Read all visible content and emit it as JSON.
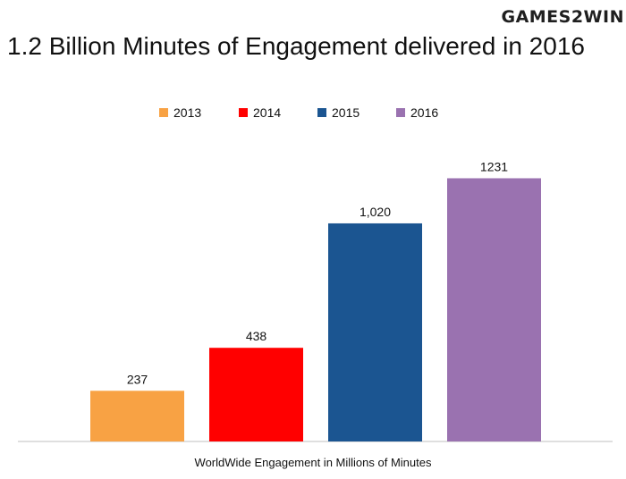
{
  "brand": {
    "logo_text": "GAMES2WIN"
  },
  "chart_data": {
    "type": "bar",
    "title": "1.2 Billion Minutes of Engagement delivered in 2016",
    "xlabel": "WorldWide Engagement in Millions of Minutes",
    "ylabel": "",
    "categories": [
      "2013",
      "2014",
      "2015",
      "2016"
    ],
    "values": [
      237,
      438,
      1020,
      1231
    ],
    "data_labels": [
      "237",
      "438",
      "1,020",
      "1231"
    ],
    "colors": [
      "#F8A244",
      "#FF0000",
      "#1B5591",
      "#9A72B0"
    ],
    "ylim": [
      0,
      1350
    ],
    "legend_position": "top",
    "grid": false
  }
}
